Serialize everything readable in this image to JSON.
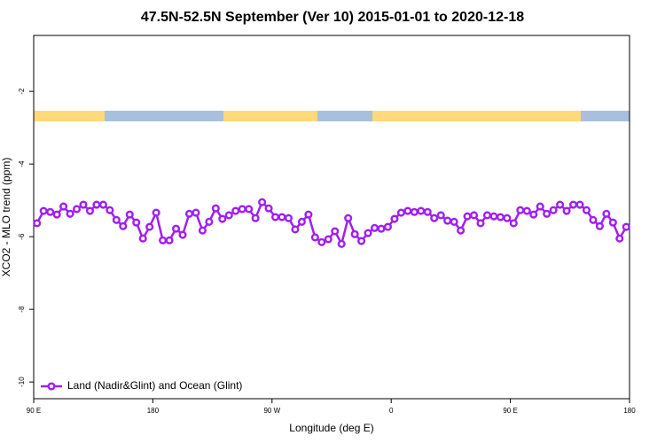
{
  "chart_data": {
    "type": "line",
    "title": "47.5N-52.5N September (Ver 10)   2015-01-01 to 2020-12-18",
    "xlabel": "Longitude (deg E)",
    "ylabel": "XCO2 - MLO trend (ppm)",
    "x": [
      92.5,
      97.5,
      102.5,
      107.5,
      112.5,
      117.5,
      122.5,
      127.5,
      132.5,
      137.5,
      142.5,
      147.5,
      152.5,
      157.5,
      162.5,
      167.5,
      172.5,
      177.5,
      182.5,
      187.5,
      192.5,
      197.5,
      202.5,
      207.5,
      212.5,
      217.5,
      222.5,
      227.5,
      232.5,
      237.5,
      242.5,
      247.5,
      252.5,
      257.5,
      262.5,
      267.5,
      272.5,
      277.5,
      282.5,
      287.5,
      292.5,
      297.5,
      302.5,
      307.5,
      312.5,
      317.5,
      322.5,
      327.5,
      332.5,
      337.5,
      342.5,
      347.5,
      352.5,
      357.5,
      362.5,
      367.5,
      372.5,
      377.5,
      382.5,
      387.5,
      392.5,
      397.5,
      402.5,
      407.5,
      412.5,
      417.5,
      422.5,
      427.5,
      432.5,
      437.5,
      442.5,
      447.5,
      452.5,
      457.5,
      462.5,
      467.5,
      472.5,
      477.5,
      482.5,
      487.5,
      492.5,
      497.5,
      502.5,
      507.5,
      512.5,
      517.5,
      522.5,
      527.5,
      532.5,
      537.5
    ],
    "series": [
      {
        "name": "Land (Nadir&Glint) and Ocean (Glint)",
        "color": "#a020f0",
        "values": [
          -5.63,
          -5.29,
          -5.32,
          -5.39,
          -5.17,
          -5.37,
          -5.24,
          -5.12,
          -5.29,
          -5.12,
          -5.12,
          -5.27,
          -5.54,
          -5.71,
          -5.39,
          -5.61,
          -6.05,
          -5.73,
          -5.34,
          -6.1,
          -6.1,
          -5.78,
          -5.95,
          -5.37,
          -5.34,
          -5.83,
          -5.59,
          -5.22,
          -5.51,
          -5.41,
          -5.29,
          -5.24,
          -5.24,
          -5.49,
          -5.05,
          -5.22,
          -5.46,
          -5.46,
          -5.49,
          -5.8,
          -5.59,
          -5.39,
          -6.02,
          -6.15,
          -6.07,
          -5.85,
          -6.2,
          -5.49,
          -5.93,
          -6.12,
          -5.9,
          -5.76,
          -5.78,
          -5.73,
          -5.51,
          -5.34,
          -5.29,
          -5.32,
          -5.29,
          -5.32,
          -5.49,
          -5.41,
          -5.56,
          -5.59,
          -5.83,
          -5.44,
          -5.41,
          -5.63,
          -5.41,
          -5.44,
          -5.46,
          -5.49,
          -5.63,
          -5.27,
          -5.29,
          -5.39,
          -5.17,
          -5.37,
          -5.27,
          -5.12,
          -5.29,
          -5.12,
          -5.12,
          -5.27,
          -5.54,
          -5.71,
          -5.37,
          -5.61,
          -6.05,
          -5.73
        ]
      }
    ],
    "xlim": [
      90,
      540
    ],
    "xticks": [
      {
        "value": 90,
        "label": "90 E"
      },
      {
        "value": 180,
        "label": "180"
      },
      {
        "value": 270,
        "label": "90 W"
      },
      {
        "value": 360,
        "label": "0"
      },
      {
        "value": 450,
        "label": "90 E"
      },
      {
        "value": 540,
        "label": "180"
      }
    ],
    "ylim": [
      -10.46,
      -0.46
    ],
    "yticks": [
      -10,
      -8,
      -6,
      -4,
      -2
    ],
    "grid": false,
    "legend": "bottom-left"
  }
}
